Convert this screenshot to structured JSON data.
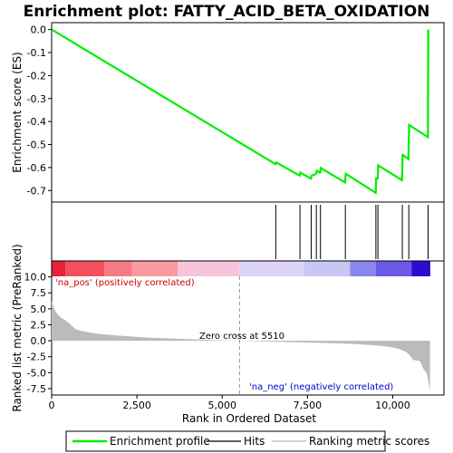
{
  "chart_data": {
    "type": "line",
    "title": "Enrichment plot: FATTY_ACID_BETA_OXIDATION",
    "xlabel": "Rank in Ordered Dataset",
    "xlim": [
      0,
      11500
    ],
    "x_ticks": [
      0,
      2500,
      5000,
      7500,
      10000
    ],
    "x_tick_labels": [
      "0",
      "2,500",
      "5,000",
      "7,500",
      "10,000"
    ],
    "es_panel": {
      "ylabel": "Enrichment score (ES)",
      "ylim": [
        -0.75,
        0.03
      ],
      "y_ticks": [
        0.0,
        -0.1,
        -0.2,
        -0.3,
        -0.4,
        -0.5,
        -0.6,
        -0.7
      ],
      "y_tick_labels": [
        "0.0",
        "-0.1",
        "-0.2",
        "-0.3",
        "-0.4",
        "-0.5",
        "-0.6",
        "-0.7"
      ],
      "series_color": "#00ee00",
      "profile": [
        [
          0,
          0.0
        ],
        [
          6560,
          -0.585
        ],
        [
          6580,
          -0.578
        ],
        [
          7270,
          -0.635
        ],
        [
          7290,
          -0.622
        ],
        [
          7600,
          -0.648
        ],
        [
          7620,
          -0.635
        ],
        [
          7750,
          -0.628
        ],
        [
          7770,
          -0.614
        ],
        [
          7870,
          -0.622
        ],
        [
          7890,
          -0.602
        ],
        [
          8600,
          -0.665
        ],
        [
          8620,
          -0.627
        ],
        [
          9500,
          -0.71
        ],
        [
          9510,
          -0.648
        ],
        [
          9560,
          -0.648
        ],
        [
          9570,
          -0.59
        ],
        [
          10270,
          -0.655
        ],
        [
          10290,
          -0.545
        ],
        [
          10460,
          -0.563
        ],
        [
          10480,
          -0.415
        ],
        [
          11030,
          -0.468
        ],
        [
          11040,
          0.0
        ]
      ]
    },
    "hits": [
      6570,
      7280,
      7610,
      7760,
      7880,
      8610,
      9505,
      9565,
      10280,
      10470,
      11035
    ],
    "ranked_panel": {
      "ylabel": "Ranked list metric (PreRanked)",
      "ylim": [
        -8.5,
        12.5
      ],
      "y_ticks": [
        10.0,
        7.5,
        5.0,
        2.5,
        0.0,
        -2.5,
        -5.0,
        -7.5
      ],
      "y_tick_labels": [
        "10.0",
        "7.5",
        "5.0",
        "2.5",
        "0.0",
        "-2.5",
        "-5.0",
        "-7.5"
      ],
      "metric": [
        [
          0,
          6.2
        ],
        [
          100,
          4.7
        ],
        [
          200,
          4.0
        ],
        [
          300,
          3.5
        ],
        [
          400,
          3.2
        ],
        [
          500,
          2.8
        ],
        [
          600,
          2.3
        ],
        [
          700,
          1.8
        ],
        [
          900,
          1.5
        ],
        [
          1200,
          1.2
        ],
        [
          1500,
          1.0
        ],
        [
          2000,
          0.8
        ],
        [
          2500,
          0.6
        ],
        [
          3000,
          0.45
        ],
        [
          3500,
          0.35
        ],
        [
          4000,
          0.25
        ],
        [
          4500,
          0.15
        ],
        [
          5000,
          0.07
        ],
        [
          5510,
          0.0
        ],
        [
          6000,
          -0.08
        ],
        [
          6500,
          -0.16
        ],
        [
          7000,
          -0.22
        ],
        [
          7500,
          -0.28
        ],
        [
          8000,
          -0.34
        ],
        [
          8500,
          -0.42
        ],
        [
          9000,
          -0.55
        ],
        [
          9500,
          -0.72
        ],
        [
          9800,
          -0.9
        ],
        [
          10000,
          -1.05
        ],
        [
          10200,
          -1.3
        ],
        [
          10400,
          -1.8
        ],
        [
          10500,
          -2.3
        ],
        [
          10600,
          -3.0
        ],
        [
          10800,
          -3.2
        ],
        [
          10900,
          -4.4
        ],
        [
          11000,
          -5.2
        ],
        [
          11050,
          -6.5
        ],
        [
          11090,
          -7.8
        ]
      ],
      "zero_cross": 5510,
      "zero_label": "Zero cross at 5510",
      "pos_label": "'na_pos' (positively correlated)",
      "neg_label": "'na_neg' (negatively correlated)"
    },
    "color_bar": [
      {
        "start": 0,
        "end": 400,
        "color": "#e8203a"
      },
      {
        "start": 400,
        "end": 1550,
        "color": "#f3505e"
      },
      {
        "start": 1550,
        "end": 2350,
        "color": "#f67a86"
      },
      {
        "start": 2350,
        "end": 3700,
        "color": "#f99aa0"
      },
      {
        "start": 3700,
        "end": 5500,
        "color": "#f8c4dc"
      },
      {
        "start": 5500,
        "end": 7400,
        "color": "#dcd3f5"
      },
      {
        "start": 7400,
        "end": 8750,
        "color": "#c8c6f3"
      },
      {
        "start": 8750,
        "end": 9500,
        "color": "#8a86ec"
      },
      {
        "start": 9500,
        "end": 10550,
        "color": "#6a58e6"
      },
      {
        "start": 10550,
        "end": 11100,
        "color": "#2e0ccf"
      }
    ],
    "legend": [
      {
        "label": "Enrichment profile",
        "color": "#00ee00",
        "style": "line-thick"
      },
      {
        "label": "Hits",
        "color": "#000000",
        "style": "line"
      },
      {
        "label": "Ranking metric scores",
        "color": "#bbbbbb",
        "style": "line"
      }
    ]
  }
}
